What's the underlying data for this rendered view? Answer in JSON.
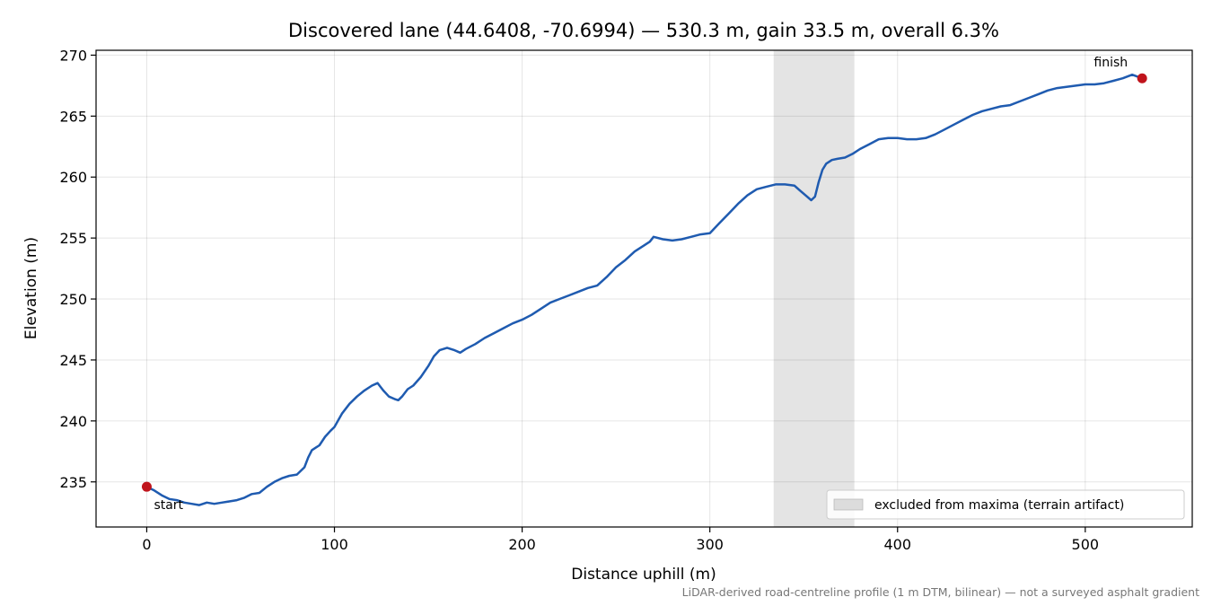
{
  "chart_data": {
    "type": "line",
    "title": "Discovered lane (44.6408, -70.6994) — 530.3 m, gain 33.5 m, overall 6.3%",
    "xlabel": "Distance uphill (m)",
    "ylabel": "Elevation (m)",
    "xlim": [
      -27,
      557
    ],
    "ylim": [
      231.3,
      270.4
    ],
    "xticks": [
      0,
      100,
      200,
      300,
      400,
      500
    ],
    "yticks": [
      235,
      240,
      245,
      250,
      255,
      260,
      265,
      270
    ],
    "grid": true,
    "legend_placement": "lower-right",
    "excluded_band": {
      "x_start": 334,
      "x_end": 377,
      "label": "excluded from maxima (terrain artifact)"
    },
    "series": [
      {
        "color": "#1f5bb0",
        "x": [
          0,
          4,
          8,
          12,
          16,
          20,
          24,
          28,
          32,
          36,
          40,
          44,
          48,
          52,
          56,
          60,
          64,
          68,
          72,
          76,
          80,
          84,
          86,
          88,
          90,
          92,
          95,
          98,
          100,
          104,
          108,
          112,
          116,
          120,
          123,
          126,
          129,
          132,
          134,
          136,
          139,
          142,
          146,
          150,
          153,
          156,
          160,
          164,
          167,
          170,
          175,
          180,
          185,
          190,
          195,
          200,
          205,
          210,
          215,
          220,
          225,
          230,
          235,
          240,
          245,
          250,
          255,
          260,
          265,
          268,
          270,
          275,
          280,
          285,
          290,
          295,
          300,
          305,
          310,
          315,
          320,
          325,
          330,
          335,
          340,
          345,
          348,
          351,
          354,
          356,
          358,
          360,
          362,
          365,
          368,
          372,
          376,
          380,
          385,
          390,
          395,
          400,
          405,
          410,
          415,
          420,
          425,
          430,
          435,
          440,
          445,
          450,
          455,
          460,
          465,
          470,
          475,
          480,
          485,
          490,
          495,
          500,
          505,
          510,
          515,
          520,
          525,
          530.3
        ],
        "y": [
          234.6,
          234.3,
          233.9,
          233.6,
          233.5,
          233.3,
          233.2,
          233.1,
          233.3,
          233.2,
          233.3,
          233.4,
          233.5,
          233.7,
          234.0,
          234.1,
          234.6,
          235.0,
          235.3,
          235.5,
          235.6,
          236.2,
          237.0,
          237.6,
          237.8,
          238.0,
          238.7,
          239.2,
          239.5,
          240.6,
          241.4,
          242.0,
          242.5,
          242.9,
          243.1,
          242.5,
          242.0,
          241.8,
          241.7,
          242.0,
          242.6,
          242.9,
          243.6,
          244.5,
          245.3,
          245.8,
          246.0,
          245.8,
          245.6,
          245.9,
          246.3,
          246.8,
          247.2,
          247.6,
          248.0,
          248.3,
          248.7,
          249.2,
          249.7,
          250.0,
          250.3,
          250.6,
          250.9,
          251.1,
          251.8,
          252.6,
          253.2,
          253.9,
          254.4,
          254.7,
          255.1,
          254.9,
          254.8,
          254.9,
          255.1,
          255.3,
          255.4,
          256.2,
          257.0,
          257.8,
          258.5,
          259.0,
          259.2,
          259.4,
          259.4,
          259.3,
          258.9,
          258.5,
          258.1,
          258.4,
          259.6,
          260.6,
          261.1,
          261.4,
          261.5,
          261.6,
          261.9,
          262.3,
          262.7,
          263.1,
          263.2,
          263.2,
          263.1,
          263.1,
          263.2,
          263.5,
          263.9,
          264.3,
          264.7,
          265.1,
          265.4,
          265.6,
          265.8,
          265.9,
          266.2,
          266.5,
          266.8,
          267.1,
          267.3,
          267.4,
          267.5,
          267.6,
          267.6,
          267.7,
          267.9,
          268.1,
          268.4,
          268.1
        ]
      }
    ],
    "markers": [
      {
        "x": 0,
        "y": 234.6,
        "label": "start",
        "color": "#c0141c"
      },
      {
        "x": 530.3,
        "y": 268.1,
        "label": "finish",
        "color": "#c0141c"
      }
    ],
    "footnote": "LiDAR-derived road-centreline profile (1 m DTM, bilinear) — not a surveyed asphalt gradient"
  }
}
